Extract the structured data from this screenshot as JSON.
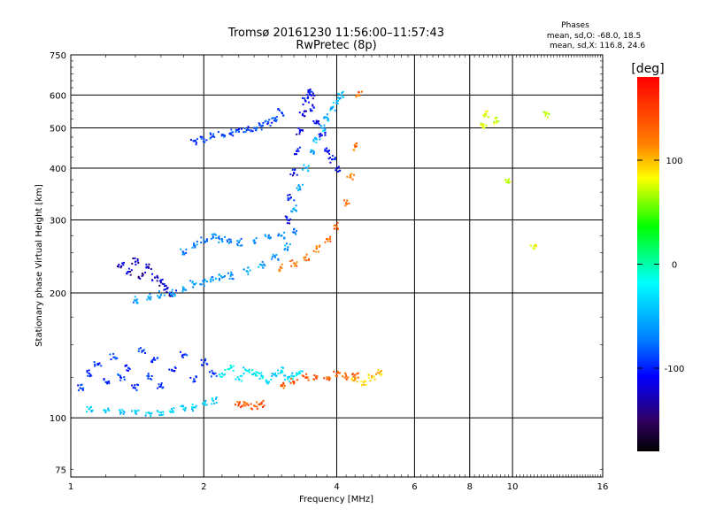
{
  "header": {
    "title": "Tromsø 20161230 11:56:00–11:57:43",
    "subtitle": "RwPretec (8p)",
    "stats_title": "Phases",
    "stats_line1": "mean, sd,O: -68.0, 18.5",
    "stats_line2": "mean, sd,X: 116.8, 24.6"
  },
  "chart_data": {
    "type": "scatter",
    "title": "Tromsø 20161230 11:56:00–11:57:43",
    "subtitle": "RwPretec (8p)",
    "xlabel": "Frequency [MHz]",
    "ylabel": "Stationary phase Virtual Height [km]",
    "x_scale": "log",
    "y_scale": "log",
    "xlim": [
      1,
      16
    ],
    "ylim": [
      72,
      750
    ],
    "grid": true,
    "x_major_ticks": [
      2,
      4,
      6,
      8,
      10
    ],
    "x_tick_labels": [
      "1",
      "2",
      "4",
      "6",
      "8",
      "10",
      "16"
    ],
    "x_tick_values": [
      1,
      2,
      4,
      6,
      8,
      10,
      16
    ],
    "y_major_ticks": [
      100,
      200,
      300,
      400,
      500,
      600
    ],
    "y_tick_labels": [
      "75",
      "100",
      "200",
      "300",
      "400",
      "500",
      "600",
      "750"
    ],
    "y_tick_values": [
      75,
      100,
      200,
      300,
      400,
      500,
      600,
      750
    ],
    "colorbar": {
      "label": "[deg]",
      "range": [
        -180,
        180
      ],
      "tick_labels": [
        "100",
        "0",
        "-100"
      ],
      "tick_values": [
        100,
        0,
        -100
      ]
    },
    "series": [
      {
        "trace": "lower-E-trace",
        "x": [
          1.1,
          1.2,
          1.3,
          1.4,
          1.5,
          1.6,
          1.7,
          1.8,
          1.9,
          2.0,
          2.1
        ],
        "y": [
          105,
          104,
          103,
          103,
          103,
          103,
          104,
          105,
          106,
          108,
          110
        ],
        "phase": -40
      },
      {
        "trace": "E-scatter-left",
        "x": [
          1.05,
          1.1,
          1.15,
          1.2,
          1.25,
          1.3,
          1.35,
          1.4,
          1.45,
          1.5,
          1.55,
          1.6,
          1.7,
          1.8,
          1.9,
          2.0,
          2.1
        ],
        "y": [
          118,
          128,
          135,
          122,
          140,
          125,
          132,
          118,
          145,
          126,
          138,
          120,
          130,
          142,
          124,
          136,
          128
        ],
        "phase": -95
      },
      {
        "trace": "E-scatter-mid",
        "x": [
          2.2,
          2.3,
          2.4,
          2.5,
          2.6,
          2.7,
          2.8,
          2.9,
          3.0,
          3.1,
          3.2,
          3.3
        ],
        "y": [
          128,
          132,
          124,
          130,
          128,
          126,
          122,
          128,
          130,
          124,
          126,
          128
        ],
        "phase": -30
      },
      {
        "trace": "Es-orange",
        "x": [
          2.4,
          2.5,
          2.6,
          2.7,
          3.0,
          3.2,
          3.4,
          3.6,
          3.8,
          4.0,
          4.2,
          4.4
        ],
        "y": [
          108,
          108,
          107,
          108,
          120,
          122,
          125,
          126,
          124,
          128,
          126,
          127
        ],
        "phase": 140
      },
      {
        "trace": "Es-yellow",
        "x": [
          4.4,
          4.6,
          4.8,
          5.0
        ],
        "y": [
          124,
          122,
          125,
          128
        ],
        "phase": 95
      },
      {
        "trace": "F1-lower-blue",
        "x": [
          1.3,
          1.35,
          1.4,
          1.45,
          1.5,
          1.55,
          1.6,
          1.65,
          1.7
        ],
        "y": [
          232,
          225,
          238,
          220,
          230,
          218,
          212,
          205,
          200
        ],
        "phase": -120
      },
      {
        "trace": "F1-low-cyan",
        "x": [
          1.4,
          1.5,
          1.6,
          1.7,
          1.8,
          1.9,
          2.0,
          2.1,
          2.2,
          2.3,
          2.5,
          2.7,
          2.9,
          3.1
        ],
        "y": [
          192,
          195,
          198,
          200,
          205,
          210,
          212,
          215,
          218,
          220,
          226,
          234,
          244,
          258
        ],
        "phase": -60
      },
      {
        "trace": "F1-upper",
        "x": [
          1.8,
          1.9,
          2.0,
          2.1,
          2.2,
          2.3,
          2.4,
          2.6,
          2.8,
          3.0,
          3.2
        ],
        "y": [
          250,
          262,
          268,
          272,
          270,
          266,
          265,
          268,
          272,
          275,
          280
        ],
        "phase": -70
      },
      {
        "trace": "F2-left-blue",
        "x": [
          1.9,
          2.0,
          2.1,
          2.2,
          2.3,
          2.4,
          2.5,
          2.6,
          2.7,
          2.8,
          2.9,
          3.0
        ],
        "y": [
          465,
          470,
          478,
          482,
          486,
          490,
          494,
          500,
          505,
          515,
          528,
          545
        ],
        "phase": -90
      },
      {
        "trace": "F2-cusp-blue",
        "x": [
          3.1,
          3.15,
          3.2,
          3.25,
          3.3,
          3.35,
          3.4,
          3.45,
          3.5,
          3.55,
          3.6,
          3.7,
          3.8,
          3.9,
          4.0
        ],
        "y": [
          300,
          340,
          390,
          440,
          490,
          540,
          580,
          610,
          600,
          560,
          520,
          480,
          440,
          420,
          400
        ],
        "phase": -110
      },
      {
        "trace": "F2-cusp-cyan",
        "x": [
          3.2,
          3.3,
          3.4,
          3.5,
          3.6,
          3.7,
          3.8,
          3.9,
          4.0,
          4.1
        ],
        "y": [
          320,
          360,
          400,
          440,
          470,
          500,
          530,
          560,
          580,
          600
        ],
        "phase": -50
      },
      {
        "trace": "X-mode-orange",
        "x": [
          3.0,
          3.2,
          3.4,
          3.6,
          3.8,
          4.0,
          4.2,
          4.3,
          4.4,
          4.5
        ],
        "y": [
          230,
          236,
          244,
          256,
          270,
          290,
          330,
          380,
          450,
          600
        ],
        "phase": 130
      },
      {
        "trace": "sparse-high",
        "x": [
          8.6,
          8.7,
          9.2,
          9.7,
          11.2,
          11.9
        ],
        "y": [
          510,
          540,
          520,
          370,
          260,
          540
        ],
        "phase": 70
      }
    ]
  }
}
